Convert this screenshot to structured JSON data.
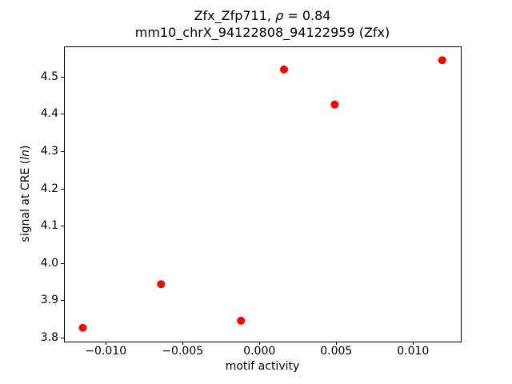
{
  "figure": {
    "background": "#ffffff",
    "text_color": "#000000"
  },
  "title": {
    "line1_prefix": "Zfx_Zfp711, ",
    "line1_rho": "ρ",
    "line1_suffix": " = 0.84",
    "line2": "mm10_chrX_94122808_94122959 (Zfx)"
  },
  "axis_labels": {
    "x": "motif activity",
    "y_prefix": "signal at CRE (",
    "y_italic": "ln",
    "y_suffix": ")"
  },
  "chart_data": {
    "type": "scatter",
    "title": "Zfx_Zfp711, ρ = 0.84",
    "subtitle": "mm10_chrX_94122808_94122959 (Zfx)",
    "xlabel": "motif activity",
    "ylabel": "signal at CRE (ln)",
    "grid": false,
    "legend": null,
    "axis_color": "#000000",
    "marker": {
      "color": "#ff0000",
      "radius_px": 5
    },
    "xlim": [
      -0.01272,
      0.01311
    ],
    "ylim": [
      3.789,
      4.581
    ],
    "x_ticks": [
      {
        "value": -0.01,
        "label": "−0.010"
      },
      {
        "value": -0.005,
        "label": "−0.005"
      },
      {
        "value": 0.0,
        "label": "0.000"
      },
      {
        "value": 0.005,
        "label": "0.005"
      },
      {
        "value": 0.01,
        "label": "0.010"
      }
    ],
    "y_ticks": [
      {
        "value": 3.8,
        "label": "3.8"
      },
      {
        "value": 3.9,
        "label": "3.9"
      },
      {
        "value": 4.0,
        "label": "4.0"
      },
      {
        "value": 4.1,
        "label": "4.1"
      },
      {
        "value": 4.2,
        "label": "4.2"
      },
      {
        "value": 4.3,
        "label": "4.3"
      },
      {
        "value": 4.4,
        "label": "4.4"
      },
      {
        "value": 4.5,
        "label": "4.5"
      }
    ],
    "points": [
      {
        "x": -0.0115,
        "y": 3.826
      },
      {
        "x": -0.0064,
        "y": 3.943
      },
      {
        "x": -0.0012,
        "y": 3.845
      },
      {
        "x": 0.0016,
        "y": 4.519
      },
      {
        "x": 0.0049,
        "y": 4.425
      },
      {
        "x": 0.0119,
        "y": 4.544
      }
    ]
  }
}
